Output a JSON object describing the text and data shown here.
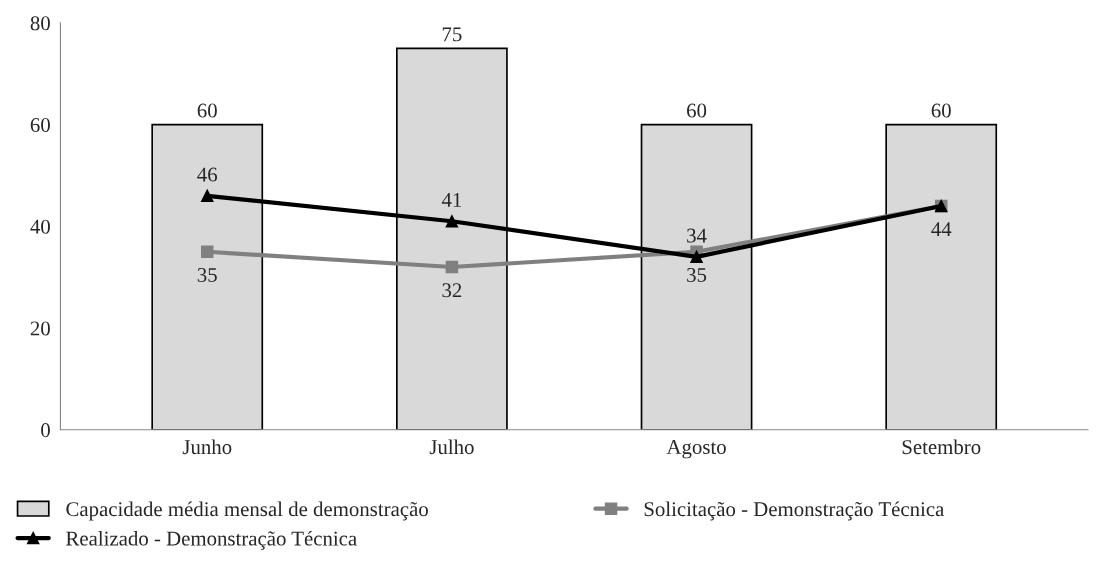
{
  "chart_data": {
    "type": "bar",
    "categories": [
      "Junho",
      "Julho",
      "Agosto",
      "Setembro"
    ],
    "ylim": [
      0,
      80
    ],
    "yticks": [
      0,
      20,
      40,
      60,
      80
    ],
    "grid": false,
    "legend": "bottom",
    "series": [
      {
        "name": "Capacidade média mensal de demonstração",
        "color": "#d9d9d9",
        "values": [
          60,
          75,
          60,
          60
        ],
        "value_labels": [
          "60",
          "75",
          "60",
          "60"
        ]
      },
      {
        "name": "Solicitação - Demonstração Técnica",
        "type": "line",
        "color": "#808080",
        "marker": "square",
        "values": [
          35,
          32,
          35,
          44
        ],
        "value_labels": [
          "35",
          "32",
          "35",
          "44"
        ]
      },
      {
        "name": "Realizado - Demonstração Técnica",
        "type": "line",
        "color": "#000000",
        "marker": "triangle",
        "values": [
          46,
          41,
          34,
          44
        ],
        "value_labels": [
          "46",
          "41",
          "34",
          null
        ]
      }
    ]
  }
}
